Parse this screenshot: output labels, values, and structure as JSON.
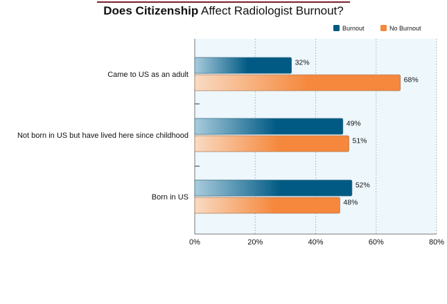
{
  "title": {
    "bold": "Does Citizenship",
    "rest": "Affect Radiologist Burnout?"
  },
  "colors": {
    "burnout": "#005a84",
    "burnout_light": "#a9ccdd",
    "no_burnout": "#f5883c",
    "no_burnout_light": "#f9dbc3",
    "plot_bg": "#eef7fc",
    "title_rule": "#7a1f2b"
  },
  "chart_data": {
    "type": "bar",
    "orientation": "horizontal",
    "title": "Does Citizenship Affect Radiologist Burnout?",
    "categories": [
      "Came to US as an adult",
      "Not born in US but have lived here since childhood",
      "Born in US"
    ],
    "series": [
      {
        "name": "Burnout",
        "values": [
          32,
          49,
          52
        ],
        "labels": [
          "32%",
          "49%",
          "52%"
        ]
      },
      {
        "name": "No Burnout",
        "values": [
          68,
          51,
          48
        ],
        "labels": [
          "68%",
          "51%",
          "48%"
        ]
      }
    ],
    "xlim": [
      0,
      80
    ],
    "xticks": [
      0,
      20,
      40,
      60,
      80
    ],
    "xtick_labels": [
      "0%",
      "20%",
      "40%",
      "60%",
      "80%"
    ],
    "grid": "vertical dotted",
    "legend_position": "top-right"
  }
}
